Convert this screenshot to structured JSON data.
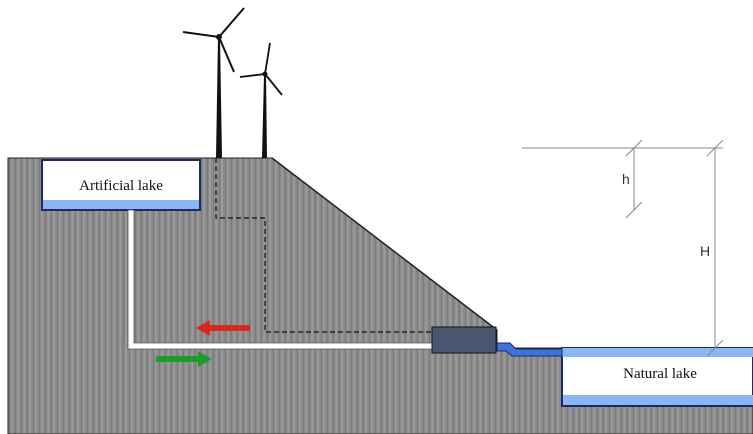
{
  "labels": {
    "artificial_lake": "Artificial lake",
    "natural_lake": "Natural lake",
    "small_height": "h",
    "total_height": "H"
  },
  "colors": {
    "ground": "#8a8a8a",
    "water": "#8ab6f2",
    "water_edge": "#3e73d8",
    "pipe": "#ffffff",
    "station": "#4b5670",
    "flow_up": "#d62a1c",
    "flow_down": "#1f9a2c",
    "turbine": "#111111"
  },
  "icons": {
    "arrow_red": "arrow-left",
    "arrow_green": "arrow-right",
    "wind_turbine": "wind-turbine"
  }
}
